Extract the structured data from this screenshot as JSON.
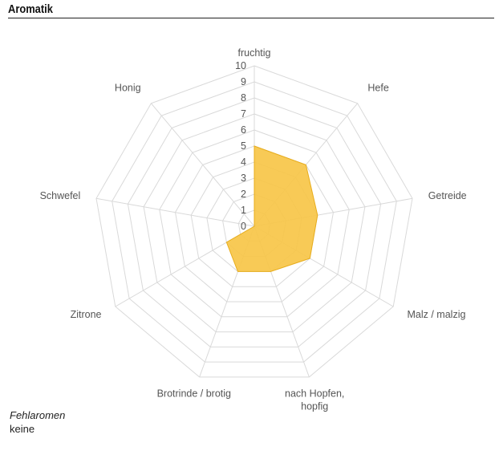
{
  "header": {
    "title": "Aromatik"
  },
  "chart_data": {
    "type": "radar",
    "title": "",
    "categories": [
      "fruchtig",
      "Hefe",
      "Getreide",
      "Malz / malzig",
      "nach Hopfen, hopfig",
      "Brotrinde / brotig",
      "Zitrone",
      "Schwefel",
      "Honig"
    ],
    "values": [
      5,
      5,
      4,
      4,
      3,
      3,
      2,
      0,
      0
    ],
    "rticks": [
      0,
      1,
      2,
      3,
      4,
      5,
      6,
      7,
      8,
      9,
      10
    ],
    "rlim": [
      0,
      10
    ],
    "grid": true,
    "fill_color": "#f7c548",
    "stroke_color": "#e8ad1c",
    "grid_color": "#d9d9d9"
  },
  "off_flavors": {
    "label": "Fehlaromen",
    "value": "keine"
  }
}
